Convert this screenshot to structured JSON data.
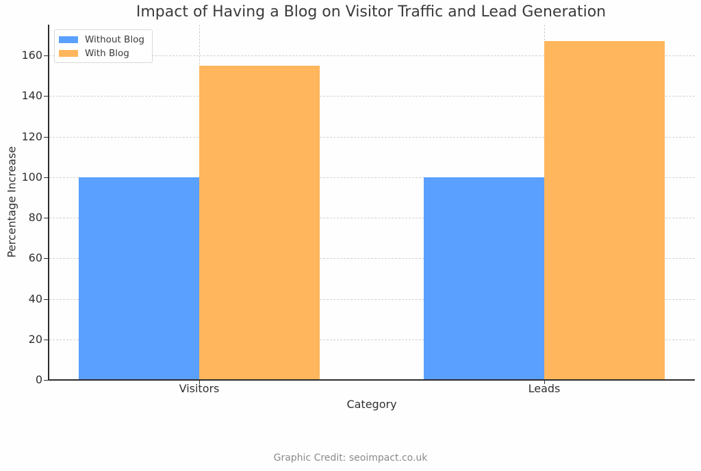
{
  "chart_data": {
    "type": "bar",
    "title": "Impact of Having a Blog on Visitor Traffic and Lead Generation",
    "xlabel": "Category",
    "ylabel": "Percentage Increase",
    "categories": [
      "Visitors",
      "Leads"
    ],
    "series": [
      {
        "name": "Without Blog",
        "color": "#5aa0ff",
        "values": [
          100,
          100
        ]
      },
      {
        "name": "With Blog",
        "color": "#ffb65c",
        "values": [
          155,
          167
        ]
      }
    ],
    "ylim": [
      0,
      175
    ],
    "yticks": [
      0,
      20,
      40,
      60,
      80,
      100,
      120,
      140,
      160
    ],
    "grid": true,
    "grid_style": "dashed",
    "legend_position": "upper left"
  },
  "labels": {
    "title": "Impact of Having a Blog on Visitor Traffic and Lead Generation",
    "xlabel": "Category",
    "ylabel": "Percentage Increase",
    "yticks": [
      "0",
      "20",
      "40",
      "60",
      "80",
      "100",
      "120",
      "140",
      "160"
    ],
    "xticks": [
      "Visitors",
      "Leads"
    ],
    "legend": [
      "Without Blog",
      "With Blog"
    ]
  },
  "footer": {
    "credit": "Graphic Credit: seoimpact.co.uk"
  }
}
